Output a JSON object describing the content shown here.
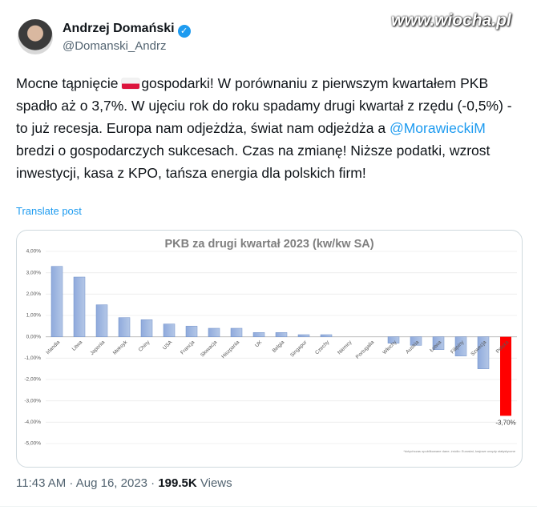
{
  "tweet": {
    "author": "Andrzej Domański",
    "handle": "@Domanski_Andrz",
    "watermark": "www.wiocha.pl",
    "text_start": "Mocne tąpnięcie ",
    "text_middle": "gospodarki! W porównaniu z pierwszym kwartałem PKB spadło aż o 3,7%. W ujęciu rok do roku spadamy drugi kwartał z rzędu (-0,5%) -to już recesja. Europa nam odjeżdża, świat nam odjeżdża a ",
    "mention": "@MorawieckiM",
    "text_end": " bredzi o gospodarczych sukcesach. Czas na zmianę! Niższe podatki, wzrost inwestycji, kasa z KPO, tańsza energia dla polskich firm!",
    "translate": "Translate post",
    "timestamp": "11:43 AM · Aug 16, 2023 · ",
    "views_count": "199.5K",
    "views_label": "Views"
  },
  "chart_data": {
    "type": "bar",
    "title": "PKB za drugi kwartał 2023 (kw/kw SA)",
    "categories": [
      "Irlandia",
      "Litwa",
      "Japonia",
      "Meksyk",
      "Chiny",
      "USA",
      "Francja",
      "Słowacja",
      "Hiszpania",
      "UK",
      "Belgia",
      "Singapur",
      "Czechy",
      "Niemcy",
      "Portugalia",
      "Włochy",
      "Austria",
      "Łotwa",
      "Filipiny",
      "Szwecja",
      "Polska"
    ],
    "values": [
      3.3,
      2.8,
      1.5,
      0.9,
      0.8,
      0.6,
      0.5,
      0.4,
      0.4,
      0.2,
      0.2,
      0.1,
      0.1,
      0.0,
      0.0,
      -0.3,
      -0.4,
      -0.6,
      -0.9,
      -1.5,
      -3.7
    ],
    "value_labels": [
      null,
      null,
      null,
      null,
      null,
      null,
      null,
      null,
      null,
      null,
      null,
      null,
      null,
      null,
      null,
      null,
      null,
      null,
      null,
      null,
      "-3,70%"
    ],
    "color": "#8faadc",
    "highlight_color": "#ff0000",
    "highlight_index": 20,
    "ylim": [
      -5,
      4
    ],
    "yticks": [
      {
        "value": -5,
        "label": "-5,00%"
      },
      {
        "value": -4,
        "label": "-4,00%"
      },
      {
        "value": -3,
        "label": "-3,00%"
      },
      {
        "value": -2,
        "label": "-2,00%"
      },
      {
        "value": -1,
        "label": "-1,00%"
      },
      {
        "value": 0,
        "label": "0,00%"
      },
      {
        "value": 1,
        "label": "1,00%"
      },
      {
        "value": 2,
        "label": "2,00%"
      },
      {
        "value": 3,
        "label": "3,00%"
      },
      {
        "value": 4,
        "label": "4,00%"
      }
    ],
    "grid": true,
    "footnote": "*dotychczas opublikowane dane; źródło: Eurostat, krajowe urzędy statystyczne"
  }
}
